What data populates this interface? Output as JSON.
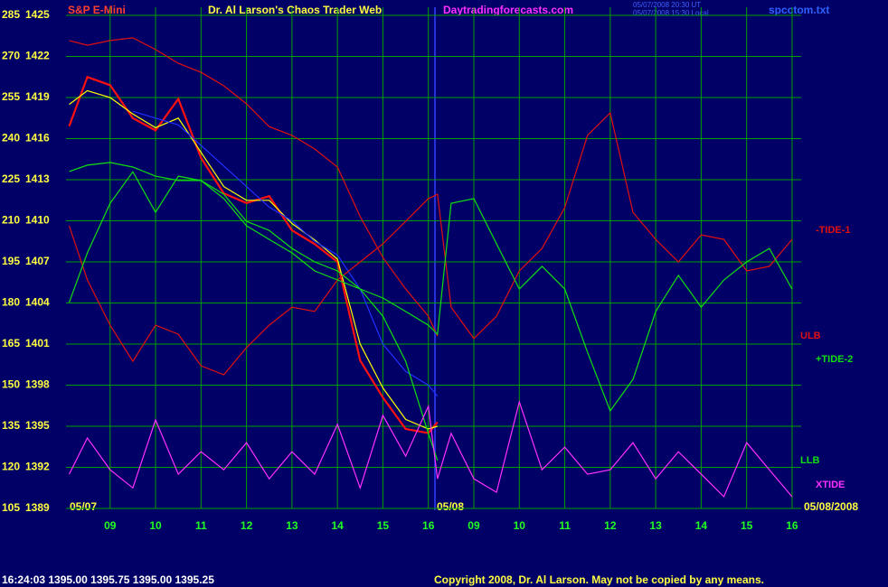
{
  "chart_data": {
    "type": "line",
    "instrument": "S&P E-Mini",
    "title": "Dr. Al Larson's Chaos Trader Web",
    "website": "Daytradingforecasts.com",
    "timestamps": [
      "05/07/2008 20:30 UT",
      "05/07/2008 15:30 Local"
    ],
    "file": "spcctom.txt",
    "annotations": [
      "05/07",
      "05/08",
      "05/08/2008"
    ],
    "status": "16:24:03  1395.00 1395.75 1395.00 1395.25",
    "copyright": "Copyright 2008, Dr. Al Larson. May not be copied by any means.",
    "x": [
      8.1,
      8.5,
      9,
      9.5,
      10,
      10.5,
      11,
      11.5,
      12,
      12.5,
      13,
      13.5,
      14,
      14.5,
      15,
      15.5,
      16,
      16.2,
      16.5,
      17,
      17.5,
      18,
      18.5,
      19,
      19.5,
      20,
      20.5,
      21,
      21.5,
      22,
      22.5,
      23,
      23.5,
      24
    ],
    "xlim": [
      8.07,
      24.2
    ],
    "xticks": [
      {
        "value": 9,
        "label": "09"
      },
      10,
      11,
      12,
      13,
      14,
      15,
      16,
      {
        "value": 17,
        "label": "09"
      },
      {
        "value": 18,
        "label": "10"
      },
      {
        "value": 19,
        "label": "11"
      },
      {
        "value": 20,
        "label": "12"
      },
      {
        "value": 21,
        "label": "13"
      },
      {
        "value": 22,
        "label": "14"
      },
      {
        "value": 23,
        "label": "15"
      },
      {
        "value": 24,
        "label": "16"
      }
    ],
    "ylim": [
      105,
      285
    ],
    "yticks": [
      105,
      120,
      135,
      150,
      165,
      180,
      195,
      210,
      225,
      240,
      255,
      270,
      285
    ],
    "y2lim": [
      1389,
      1425
    ],
    "y2ticks": [
      1389,
      1392,
      1395,
      1398,
      1401,
      1404,
      1407,
      1410,
      1413,
      1416,
      1419,
      1422,
      1425
    ],
    "grid": true,
    "series": [
      {
        "color": "#ff1010",
        "axis": "y2",
        "values": [
          1416.9,
          1420.5,
          1419.9,
          1417.5,
          1416.6,
          1418.9,
          1414.6,
          1412,
          1411.3,
          1411.8,
          1409.3,
          1408.3,
          1407,
          1399.8,
          1397.1,
          1394.8,
          1394.5,
          1395.3,
          null,
          null,
          null,
          null,
          null,
          null,
          null,
          null,
          null,
          null,
          null,
          null,
          null,
          null,
          null,
          null
        ]
      },
      {
        "color": "#ffff00",
        "axis": "y2",
        "values": [
          1418.5,
          1419.5,
          1419,
          1417.8,
          1416.8,
          1417.5,
          1415,
          1412.5,
          1411.5,
          1411.5,
          1409.8,
          1408.6,
          1407.2,
          1401,
          1397.8,
          1395.5,
          1394.8,
          1395,
          null,
          null,
          null,
          null,
          null,
          null,
          null,
          null,
          null,
          null,
          null,
          null,
          null,
          null,
          null,
          null
        ]
      },
      {
        "color": "#2030ff",
        "axis": "y2",
        "values": [
          null,
          null,
          null,
          1418,
          1417.5,
          1417,
          1415.5,
          1414,
          1412.5,
          1411,
          1410,
          1408.5,
          1407.5,
          1405,
          1401,
          1399,
          1398,
          1397.2,
          null,
          null,
          null,
          null,
          null,
          null,
          null,
          null,
          null,
          null,
          null,
          null,
          null,
          null,
          null,
          null
        ]
      },
      {
        "name": "-TIDE-1",
        "color": "#e01010",
        "values": [
          208.2,
          188.4,
          171.9,
          158.7,
          171.9,
          168.6,
          157.1,
          153.8,
          163.7,
          171.9,
          178.5,
          176.9,
          188.4,
          195,
          201.6,
          209.8,
          218.1,
          219.7,
          178.5,
          167,
          175.2,
          191.7,
          199.9,
          214.8,
          241.2,
          249.4,
          213.1,
          203.2,
          195,
          204.9,
          203.2,
          191.7,
          193.4,
          203.2
        ]
      },
      {
        "name": "ULB",
        "color": "#e01010",
        "values": [
          275.8,
          274.1,
          275.8,
          276.8,
          272.5,
          267.5,
          264.2,
          259.3,
          252.7,
          244.4,
          241.2,
          236.2,
          229.6,
          211.5,
          196.6,
          185.1,
          175.2,
          167.9,
          null,
          null,
          null,
          null,
          null,
          null,
          null,
          null,
          null,
          null,
          null,
          null,
          null,
          null,
          null,
          null
        ]
      },
      {
        "name": "+TIDE-2",
        "color": "#10e010",
        "values": [
          180.2,
          198.3,
          216.4,
          227.9,
          213.1,
          226.3,
          224.7,
          218.1,
          208.2,
          203.2,
          198.3,
          191.7,
          188.4,
          185.1,
          181.8,
          176.9,
          171.9,
          168.6,
          216.4,
          218.1,
          201.6,
          185.1,
          193.4,
          185.1,
          162,
          140.6,
          152.1,
          176.9,
          190.1,
          178.5,
          188.4,
          195,
          199.9,
          185.1
        ]
      },
      {
        "name": "LLB",
        "color": "#10e010",
        "values": [
          228,
          230.3,
          231.3,
          229.6,
          226.3,
          224.7,
          224.7,
          219.7,
          209.8,
          206.5,
          199.9,
          195,
          191.7,
          185.1,
          175.2,
          158.7,
          132.4,
          122.5,
          null,
          null,
          null,
          null,
          null,
          null,
          null,
          null,
          null,
          null,
          null,
          null,
          null,
          null,
          null,
          null
        ]
      },
      {
        "name": "XTIDE",
        "color": "#ff30ff",
        "values": [
          117.5,
          130.7,
          119.1,
          112.5,
          137.3,
          117.5,
          125.7,
          119.1,
          129,
          115.8,
          125.7,
          117.5,
          135.7,
          112.5,
          139,
          124.1,
          142.3,
          115.8,
          132.4,
          115.8,
          110.9,
          143.9,
          119.1,
          127.4,
          117.5,
          119.1,
          129,
          115.8,
          125.7,
          117.5,
          109.3,
          129,
          119.1,
          109.3
        ]
      }
    ]
  }
}
